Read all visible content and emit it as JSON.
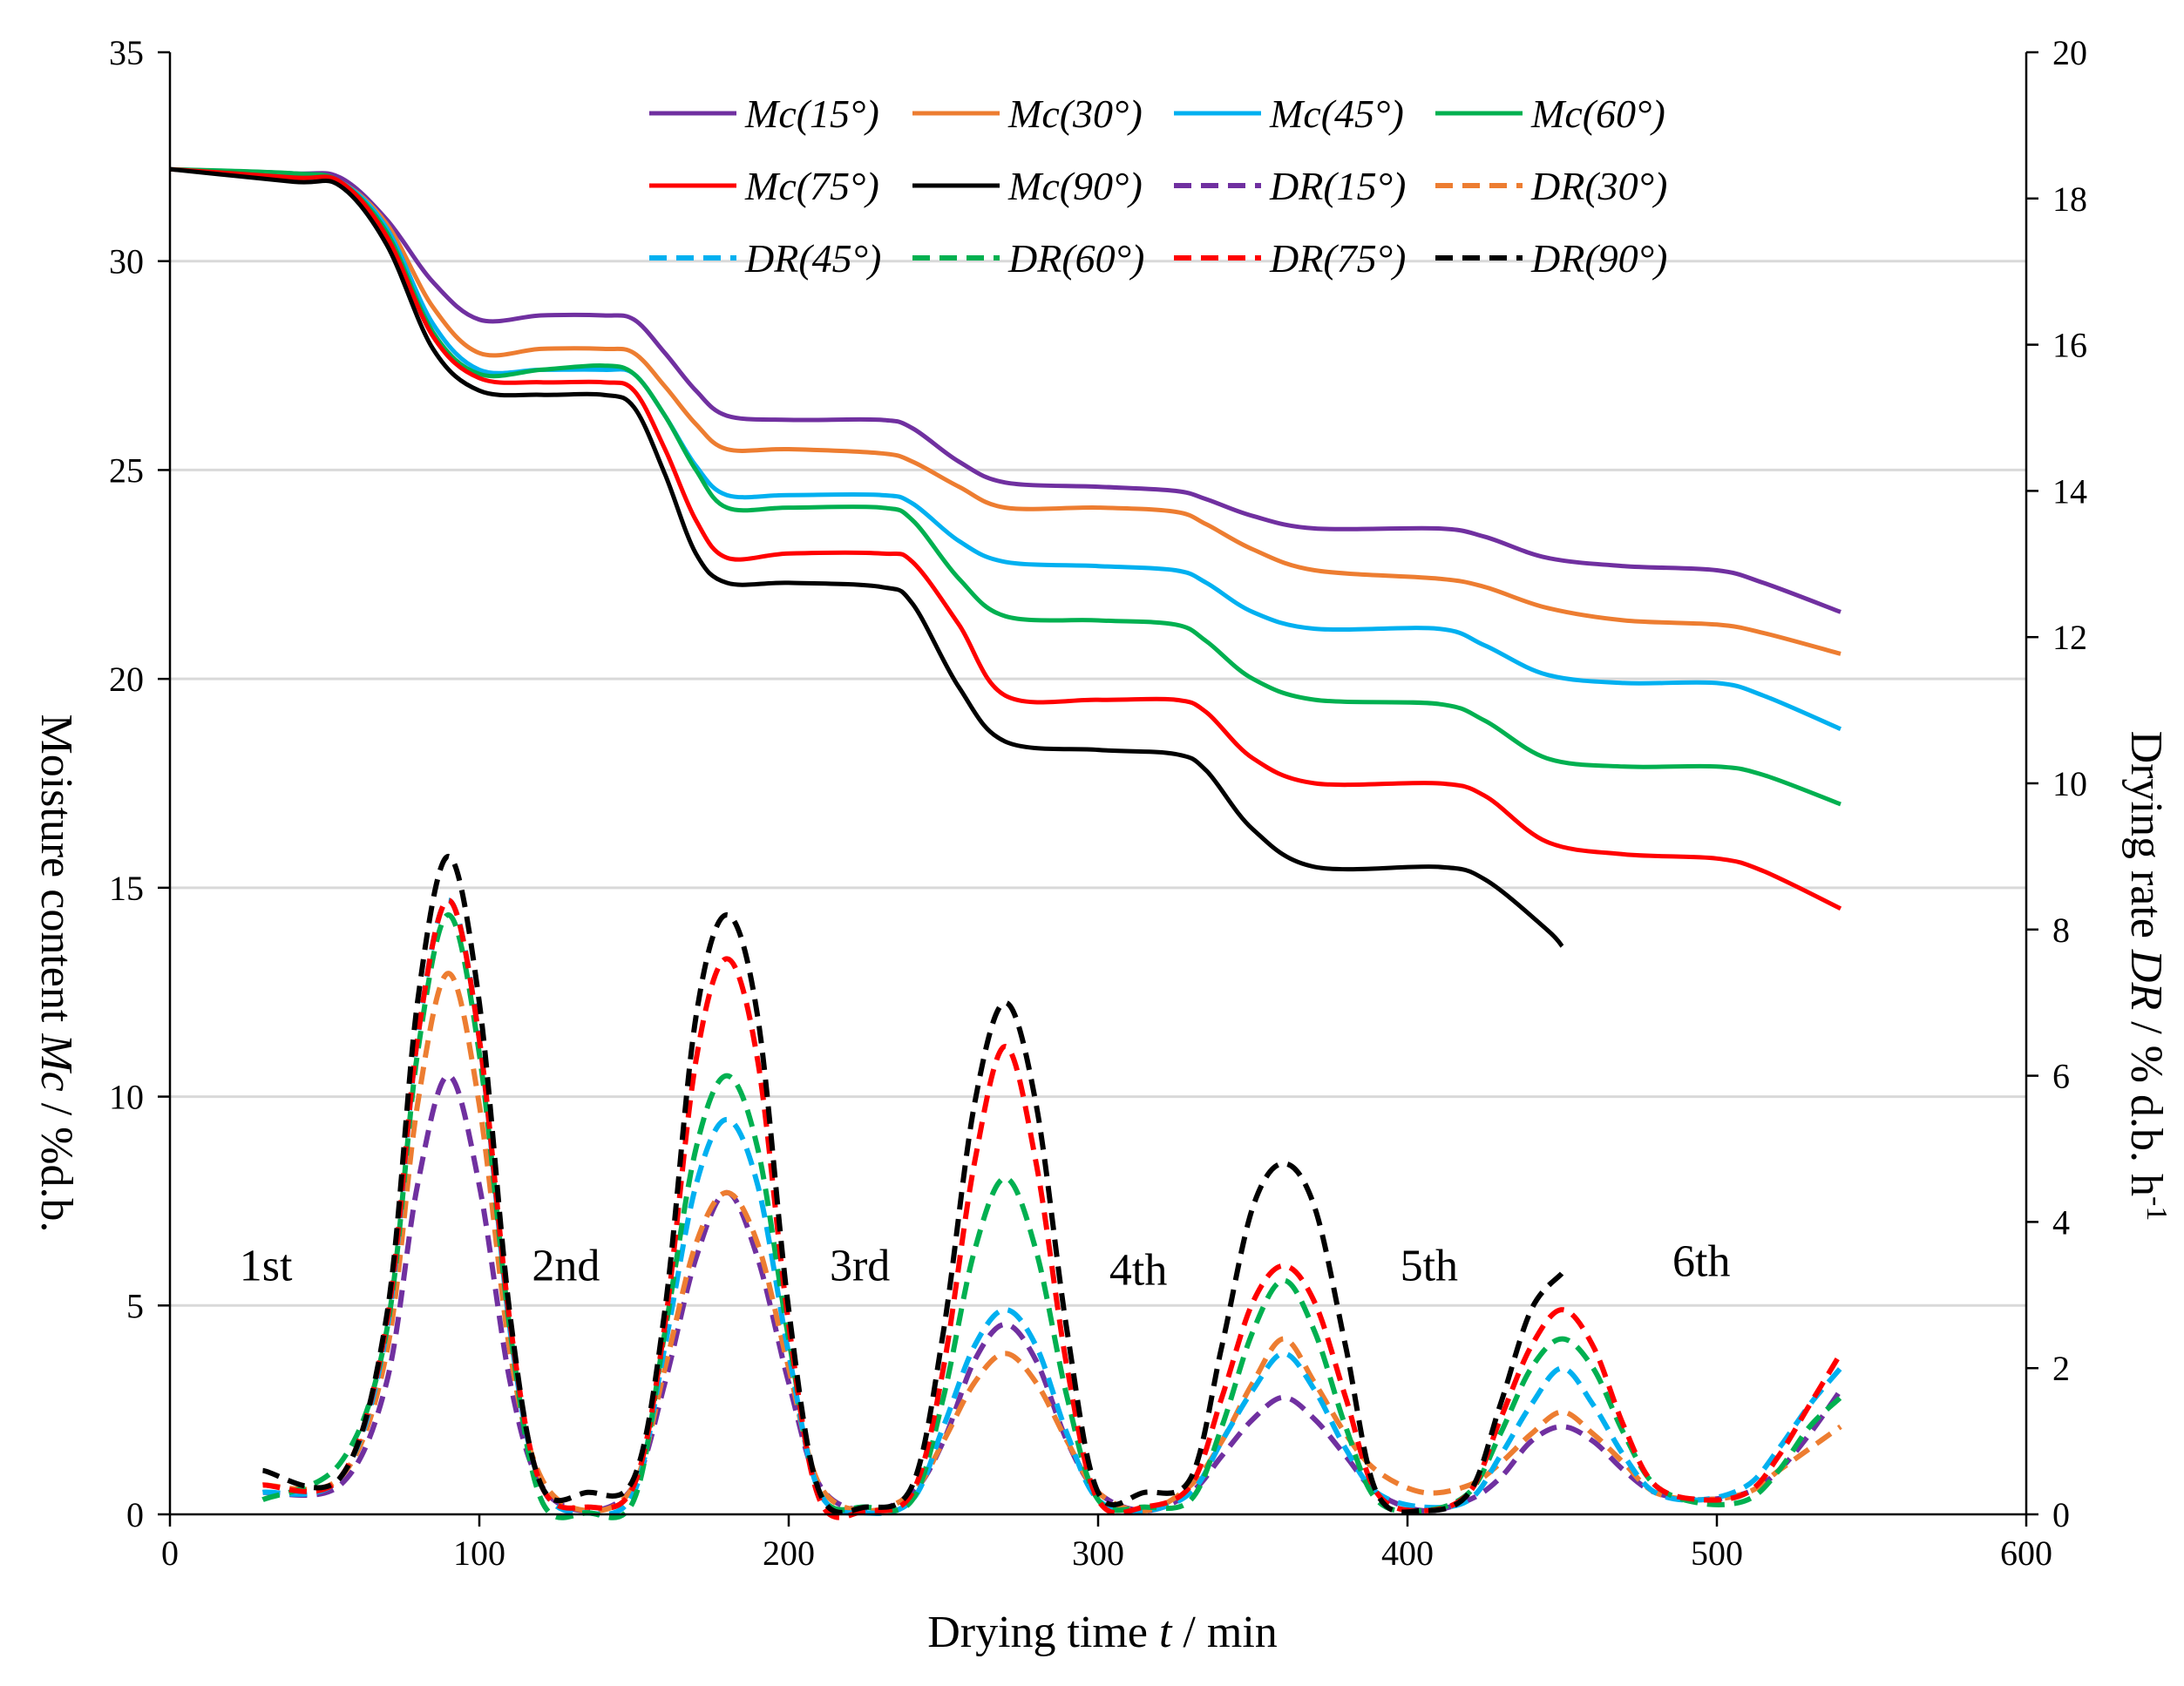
{
  "chart_data": {
    "type": "line",
    "title": "",
    "xlabel": {
      "prefix": "Drying time ",
      "var": "t",
      "suffix": " / min"
    },
    "ylabel_left": {
      "prefix": "Moisture content ",
      "var": "Mc",
      "suffix": " / %d.b."
    },
    "ylabel_right": {
      "prefix": "Drying rate ",
      "var": "DR",
      "suffix": " / % d.b. h",
      "sup": "-1"
    },
    "xlim": [
      0,
      600
    ],
    "ylim_left": [
      0,
      35
    ],
    "ylim_right": [
      0,
      20
    ],
    "x_ticks": [
      "0",
      "100",
      "200",
      "300",
      "400",
      "500",
      "600"
    ],
    "y_left_ticks": [
      "0",
      "5",
      "10",
      "15",
      "20",
      "25",
      "30",
      "35"
    ],
    "y_right_ticks": [
      "0",
      "2",
      "4",
      "6",
      "8",
      "10",
      "12",
      "14",
      "16",
      "18",
      "20"
    ],
    "grid": "horizontal",
    "legend_position": "top-center",
    "phase_labels": [
      {
        "text": "1st",
        "x": 31,
        "y": 5.6
      },
      {
        "text": "2nd",
        "x": 128,
        "y": 5.6
      },
      {
        "text": "3rd",
        "x": 223,
        "y": 5.6
      },
      {
        "text": "4th",
        "x": 313,
        "y": 5.5
      },
      {
        "text": "5th",
        "x": 407,
        "y": 5.6
      },
      {
        "text": "6th",
        "x": 495,
        "y": 5.7
      }
    ],
    "legend": [
      "Mc(15°)",
      "Mc(30°)",
      "Mc(45°)",
      "Mc(60°)",
      "Mc(75°)",
      "Mc(90°)",
      "DR(15°)",
      "DR(30°)",
      "DR(45°)",
      "DR(60°)",
      "DR(75°)",
      "DR(90°)"
    ],
    "series": [
      {
        "name": "Mc(15°)",
        "axis": "left",
        "style": "solid",
        "color": "#7030A0",
        "x": [
          0,
          40,
          55,
          70,
          85,
          100,
          120,
          140,
          150,
          160,
          170,
          180,
          200,
          230,
          240,
          255,
          270,
          300,
          325,
          335,
          350,
          370,
          410,
          425,
          445,
          470,
          500,
          515,
          540
        ],
        "y": [
          32.2,
          32.1,
          32.0,
          31.0,
          29.5,
          28.6,
          28.7,
          28.7,
          28.6,
          27.8,
          26.9,
          26.3,
          26.2,
          26.2,
          26.0,
          25.2,
          24.7,
          24.6,
          24.5,
          24.3,
          23.9,
          23.6,
          23.6,
          23.4,
          22.9,
          22.7,
          22.6,
          22.3,
          21.6
        ]
      },
      {
        "name": "Mc(30°)",
        "axis": "left",
        "style": "solid",
        "color": "#ED7D31",
        "x": [
          0,
          40,
          55,
          70,
          85,
          100,
          120,
          140,
          150,
          160,
          170,
          180,
          200,
          230,
          240,
          255,
          270,
          300,
          325,
          335,
          350,
          370,
          410,
          425,
          445,
          470,
          500,
          515,
          540
        ],
        "y": [
          32.2,
          32.0,
          31.9,
          30.9,
          28.9,
          27.8,
          27.9,
          27.9,
          27.8,
          27.0,
          26.1,
          25.5,
          25.5,
          25.4,
          25.2,
          24.6,
          24.1,
          24.1,
          24.0,
          23.7,
          23.1,
          22.6,
          22.4,
          22.2,
          21.7,
          21.4,
          21.3,
          21.1,
          20.6
        ]
      },
      {
        "name": "Mc(45°)",
        "axis": "left",
        "style": "solid",
        "color": "#00B0F0",
        "x": [
          0,
          40,
          55,
          70,
          85,
          100,
          120,
          140,
          150,
          160,
          170,
          180,
          200,
          230,
          240,
          255,
          270,
          300,
          325,
          335,
          350,
          370,
          410,
          425,
          445,
          470,
          500,
          515,
          540
        ],
        "y": [
          32.2,
          32.0,
          31.9,
          30.8,
          28.5,
          27.4,
          27.4,
          27.4,
          27.3,
          26.3,
          25.1,
          24.4,
          24.4,
          24.4,
          24.2,
          23.3,
          22.8,
          22.7,
          22.6,
          22.3,
          21.6,
          21.2,
          21.2,
          20.8,
          20.1,
          19.9,
          19.9,
          19.6,
          18.8
        ]
      },
      {
        "name": "Mc(60°)",
        "axis": "left",
        "style": "solid",
        "color": "#00B050",
        "x": [
          0,
          40,
          55,
          70,
          85,
          100,
          120,
          140,
          150,
          160,
          170,
          180,
          200,
          230,
          240,
          255,
          270,
          300,
          325,
          335,
          350,
          370,
          410,
          425,
          445,
          470,
          500,
          515,
          540
        ],
        "y": [
          32.2,
          32.1,
          31.9,
          30.7,
          28.3,
          27.3,
          27.4,
          27.5,
          27.3,
          26.3,
          25.0,
          24.1,
          24.1,
          24.1,
          23.8,
          22.4,
          21.5,
          21.4,
          21.3,
          20.9,
          20.0,
          19.5,
          19.4,
          19.0,
          18.1,
          17.9,
          17.9,
          17.7,
          17.0
        ]
      },
      {
        "name": "Mc(75°)",
        "axis": "left",
        "style": "solid",
        "color": "#FF0000",
        "x": [
          0,
          40,
          55,
          70,
          85,
          100,
          120,
          140,
          150,
          160,
          170,
          180,
          200,
          230,
          240,
          255,
          270,
          300,
          325,
          335,
          350,
          370,
          410,
          425,
          445,
          470,
          500,
          515,
          540
        ],
        "y": [
          32.2,
          32.0,
          31.9,
          30.6,
          28.2,
          27.2,
          27.1,
          27.1,
          26.9,
          25.5,
          23.8,
          22.9,
          23.0,
          23.0,
          22.8,
          21.3,
          19.6,
          19.5,
          19.5,
          19.2,
          18.1,
          17.5,
          17.5,
          17.2,
          16.1,
          15.8,
          15.7,
          15.4,
          14.5
        ]
      },
      {
        "name": "Mc(90°)",
        "axis": "left",
        "style": "solid",
        "color": "#000000",
        "x": [
          0,
          40,
          55,
          70,
          85,
          100,
          120,
          140,
          150,
          160,
          170,
          180,
          200,
          230,
          240,
          255,
          270,
          300,
          325,
          335,
          350,
          370,
          410,
          425,
          445,
          450
        ],
        "y": [
          32.2,
          31.9,
          31.8,
          30.4,
          27.9,
          26.9,
          26.8,
          26.8,
          26.5,
          24.9,
          23.0,
          22.3,
          22.3,
          22.2,
          21.8,
          19.8,
          18.5,
          18.3,
          18.2,
          17.8,
          16.4,
          15.5,
          15.5,
          15.2,
          14.0,
          13.6
        ]
      },
      {
        "name": "DR(15°)",
        "axis": "right",
        "style": "dashed",
        "color": "#7030A0",
        "x": [
          30,
          55,
          70,
          80,
          90,
          100,
          110,
          120,
          135,
          150,
          160,
          170,
          180,
          190,
          200,
          210,
          225,
          240,
          250,
          260,
          270,
          280,
          290,
          300,
          315,
          330,
          340,
          350,
          360,
          370,
          380,
          390,
          405,
          420,
          430,
          440,
          450,
          460,
          470,
          480,
          495,
          510,
          520,
          530,
          540
        ],
        "y": [
          0.3,
          0.4,
          1.8,
          4.5,
          6.0,
          4.5,
          1.8,
          0.4,
          0.05,
          0.4,
          1.8,
          3.5,
          4.4,
          3.5,
          1.8,
          0.4,
          0.05,
          0.3,
          1.0,
          2.1,
          2.6,
          2.1,
          1.0,
          0.3,
          0.05,
          0.3,
          0.8,
          1.3,
          1.6,
          1.3,
          0.8,
          0.3,
          0.05,
          0.2,
          0.5,
          1.0,
          1.2,
          1.0,
          0.6,
          0.3,
          0.2,
          0.3,
          0.6,
          1.1,
          1.7
        ]
      },
      {
        "name": "DR(30°)",
        "axis": "right",
        "style": "dashed",
        "color": "#ED7D31",
        "x": [
          30,
          55,
          70,
          80,
          90,
          100,
          110,
          120,
          135,
          150,
          160,
          170,
          180,
          190,
          200,
          210,
          225,
          240,
          250,
          260,
          270,
          280,
          290,
          300,
          315,
          330,
          340,
          350,
          360,
          370,
          380,
          390,
          405,
          420,
          430,
          440,
          450,
          460,
          470,
          480,
          495,
          510,
          520,
          530,
          540
        ],
        "y": [
          0.4,
          0.5,
          2.2,
          5.6,
          7.4,
          5.6,
          2.2,
          0.5,
          0.05,
          0.4,
          2.0,
          3.7,
          4.4,
          3.7,
          2.0,
          0.4,
          0.05,
          0.3,
          1.0,
          1.8,
          2.2,
          1.8,
          1.0,
          0.3,
          0.05,
          0.4,
          1.0,
          1.8,
          2.4,
          1.8,
          1.1,
          0.6,
          0.3,
          0.4,
          0.7,
          1.1,
          1.4,
          1.1,
          0.7,
          0.3,
          0.2,
          0.3,
          0.6,
          0.9,
          1.2
        ]
      },
      {
        "name": "DR(45°)",
        "axis": "right",
        "style": "dashed",
        "color": "#00B0F0",
        "x": [
          30,
          55,
          70,
          80,
          90,
          100,
          110,
          120,
          135,
          150,
          160,
          170,
          180,
          190,
          200,
          210,
          225,
          240,
          250,
          260,
          270,
          280,
          290,
          300,
          315,
          330,
          340,
          350,
          360,
          370,
          380,
          390,
          405,
          420,
          430,
          440,
          450,
          460,
          470,
          480,
          495,
          510,
          520,
          530,
          540
        ],
        "y": [
          0.3,
          0.5,
          2.5,
          6.5,
          8.4,
          6.5,
          2.5,
          0.4,
          0.02,
          0.3,
          2.3,
          4.5,
          5.4,
          4.5,
          2.2,
          0.3,
          0.02,
          0.2,
          1.2,
          2.3,
          2.8,
          2.3,
          1.1,
          0.2,
          0.05,
          0.3,
          1.0,
          1.7,
          2.2,
          1.7,
          0.9,
          0.3,
          0.1,
          0.2,
          0.8,
          1.5,
          2.0,
          1.5,
          0.8,
          0.3,
          0.2,
          0.4,
          0.9,
          1.5,
          2.0
        ]
      },
      {
        "name": "DR(60°)",
        "axis": "right",
        "style": "dashed",
        "color": "#00B050",
        "x": [
          30,
          55,
          70,
          80,
          90,
          100,
          110,
          120,
          135,
          150,
          160,
          170,
          180,
          190,
          200,
          210,
          225,
          240,
          250,
          260,
          270,
          280,
          290,
          300,
          315,
          330,
          340,
          350,
          360,
          370,
          380,
          390,
          405,
          420,
          430,
          440,
          450,
          460,
          470,
          480,
          495,
          510,
          520,
          530,
          540
        ],
        "y": [
          0.2,
          0.7,
          2.5,
          6.3,
          8.2,
          6.3,
          2.5,
          0.2,
          0.02,
          0.2,
          2.5,
          5.0,
          6.0,
          5.0,
          2.4,
          0.3,
          0.1,
          0.2,
          1.6,
          3.6,
          4.6,
          3.6,
          1.6,
          0.2,
          0.1,
          0.2,
          1.2,
          2.5,
          3.2,
          2.5,
          1.2,
          0.2,
          0.05,
          0.3,
          1.1,
          2.0,
          2.4,
          2.0,
          1.1,
          0.4,
          0.15,
          0.2,
          0.6,
          1.2,
          1.6
        ]
      },
      {
        "name": "DR(75°)",
        "axis": "right",
        "style": "dashed",
        "color": "#FF0000",
        "x": [
          30,
          55,
          70,
          80,
          90,
          100,
          110,
          120,
          135,
          150,
          160,
          170,
          180,
          190,
          200,
          210,
          225,
          240,
          250,
          260,
          270,
          280,
          290,
          300,
          315,
          330,
          340,
          350,
          360,
          370,
          380,
          390,
          405,
          420,
          430,
          440,
          450,
          460,
          470,
          480,
          495,
          510,
          520,
          530,
          540
        ],
        "y": [
          0.4,
          0.5,
          2.6,
          6.5,
          8.4,
          6.5,
          2.6,
          0.4,
          0.1,
          0.4,
          2.6,
          6.2,
          7.6,
          6.2,
          2.6,
          0.2,
          0.05,
          0.3,
          2.0,
          4.8,
          6.4,
          4.8,
          2.0,
          0.2,
          0.1,
          0.4,
          1.6,
          2.9,
          3.4,
          2.9,
          1.6,
          0.3,
          0.05,
          0.3,
          1.3,
          2.3,
          2.8,
          2.3,
          1.2,
          0.4,
          0.2,
          0.3,
          0.8,
          1.5,
          2.2
        ]
      },
      {
        "name": "DR(90°)",
        "axis": "right",
        "style": "dashed",
        "color": "#000000",
        "x": [
          30,
          55,
          70,
          80,
          90,
          100,
          110,
          120,
          135,
          150,
          160,
          170,
          180,
          190,
          200,
          210,
          225,
          240,
          250,
          260,
          270,
          280,
          290,
          300,
          315,
          330,
          340,
          350,
          360,
          370,
          380,
          390,
          405,
          420,
          430,
          440,
          450
        ],
        "y": [
          0.6,
          0.5,
          2.7,
          7.0,
          9.0,
          7.0,
          2.7,
          0.4,
          0.3,
          0.5,
          2.8,
          6.8,
          8.2,
          6.8,
          2.8,
          0.3,
          0.1,
          0.4,
          2.5,
          5.6,
          7.0,
          5.6,
          2.5,
          0.3,
          0.3,
          0.5,
          2.3,
          4.2,
          4.8,
          4.2,
          2.3,
          0.3,
          0.05,
          0.3,
          1.5,
          2.8,
          3.3
        ]
      }
    ]
  }
}
